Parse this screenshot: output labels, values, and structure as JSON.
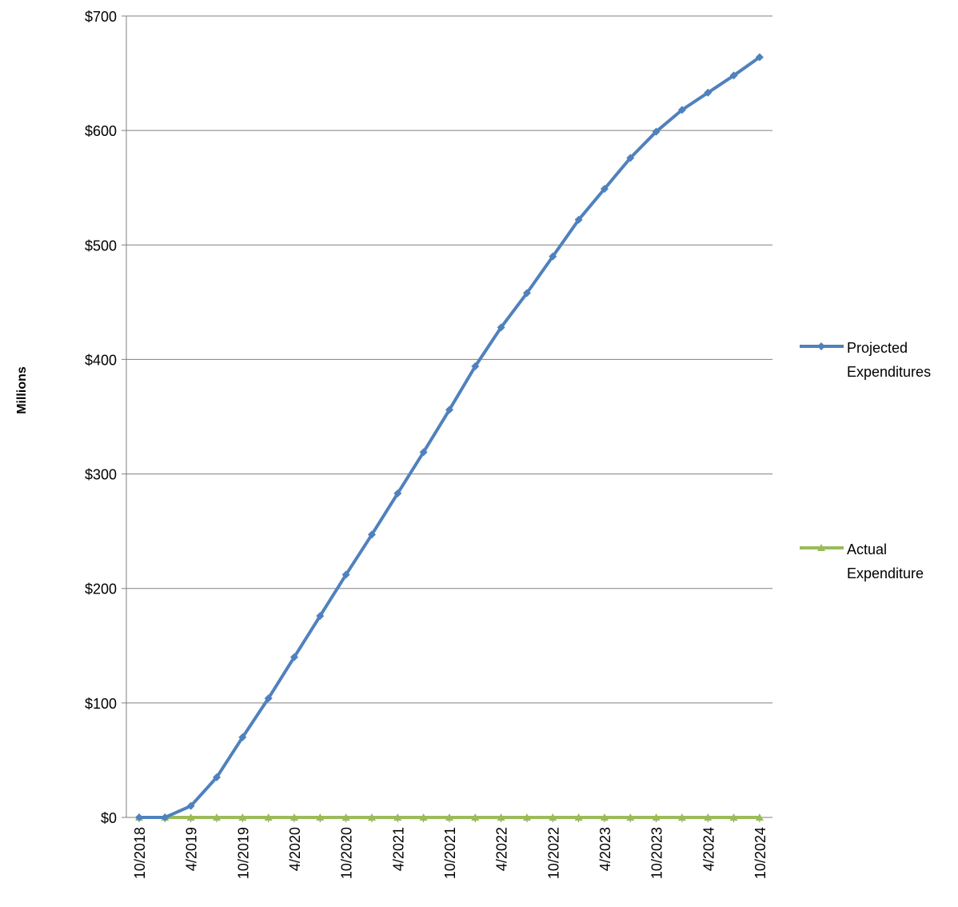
{
  "chart_data": {
    "type": "line",
    "title": "",
    "xlabel": "",
    "ylabel": "Millions",
    "ylim": [
      0,
      700
    ],
    "yticks": [
      0,
      100,
      200,
      300,
      400,
      500,
      600,
      700
    ],
    "ytick_labels": [
      "$0",
      "$100",
      "$200",
      "$300",
      "$400",
      "$500",
      "$600",
      "$700"
    ],
    "categories": [
      "10/2018",
      "1/2019",
      "4/2019",
      "7/2019",
      "10/2019",
      "1/2020",
      "4/2020",
      "7/2020",
      "10/2020",
      "1/2021",
      "4/2021",
      "7/2021",
      "10/2021",
      "1/2022",
      "4/2022",
      "7/2022",
      "10/2022",
      "1/2023",
      "4/2023",
      "7/2023",
      "10/2023",
      "1/2024",
      "4/2024",
      "7/2024",
      "10/2024"
    ],
    "xtick_labels": [
      "10/2018",
      "",
      "4/2019",
      "",
      "10/2019",
      "",
      "4/2020",
      "",
      "10/2020",
      "",
      "4/2021",
      "",
      "10/2021",
      "",
      "4/2022",
      "",
      "10/2022",
      "",
      "4/2023",
      "",
      "10/2023",
      "",
      "4/2024",
      "",
      "10/2024"
    ],
    "grid": true,
    "legend_position": "right",
    "series": [
      {
        "name": "Projected Expenditures",
        "color": "#4F81BD",
        "marker": "diamond",
        "values": [
          0,
          0,
          10,
          35,
          70,
          104,
          140,
          176,
          212,
          247,
          283,
          319,
          356,
          394,
          428,
          458,
          490,
          522,
          549,
          576,
          599,
          618,
          633,
          648,
          664
        ]
      },
      {
        "name": "Actual Expenditure",
        "color": "#9BBB59",
        "marker": "triangle",
        "values": [
          0,
          0,
          0,
          0,
          0,
          0,
          0,
          0,
          0,
          0,
          0,
          0,
          0,
          0,
          0,
          0,
          0,
          0,
          0,
          0,
          0,
          0,
          0,
          0,
          0
        ]
      }
    ],
    "legend": [
      {
        "lines": [
          "Projected",
          "Expenditures"
        ]
      },
      {
        "lines": [
          "Actual",
          "Expenditure"
        ]
      }
    ]
  }
}
